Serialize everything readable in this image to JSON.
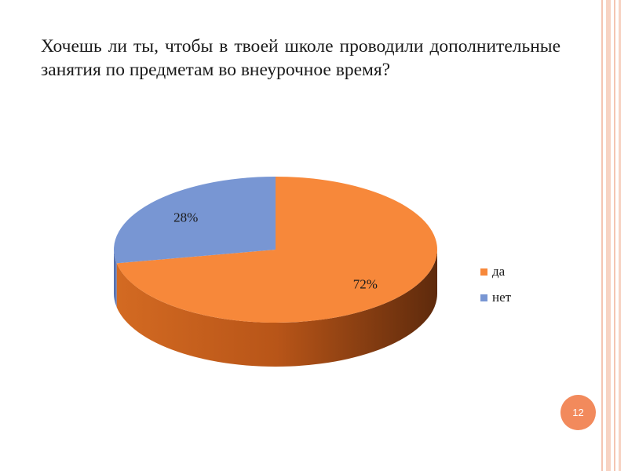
{
  "slide": {
    "question": "Хочешь ли ты, чтобы в твоей школе проводили дополнительные занятия по предметам во внеурочное время?",
    "page_number": "12"
  },
  "colors": {
    "accent_stripe": "#f4c5b2",
    "page_badge": "#f28a5c"
  },
  "chart_data": {
    "type": "pie",
    "style": "3d",
    "categories": [
      "да",
      "нет"
    ],
    "values": [
      72,
      28
    ],
    "data_labels": [
      "72%",
      "28%"
    ],
    "colors": [
      "#f7883a",
      "#7896d3"
    ],
    "legend_position": "right"
  }
}
